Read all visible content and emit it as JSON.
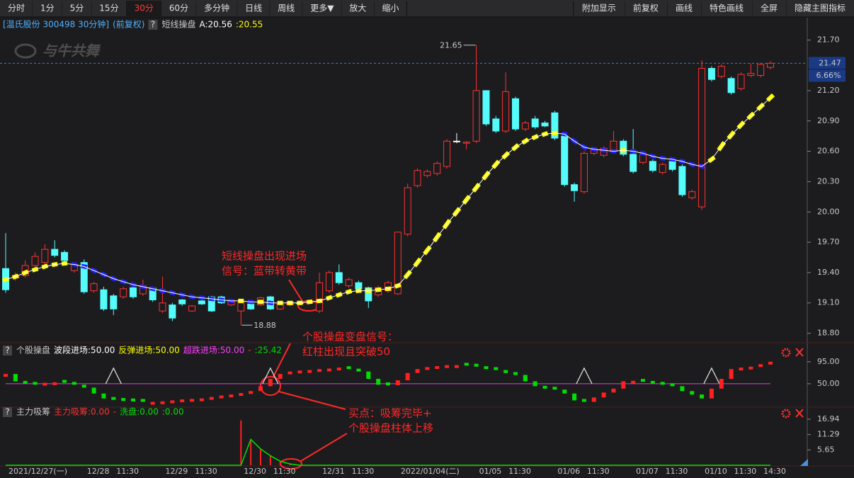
{
  "toolbar": {
    "left": [
      {
        "label": "分时"
      },
      {
        "label": "1分"
      },
      {
        "label": "5分"
      },
      {
        "label": "15分"
      },
      {
        "label": "30分",
        "active": true
      },
      {
        "label": "60分"
      },
      {
        "label": "多分钟"
      },
      {
        "label": "日线"
      },
      {
        "label": "周线"
      },
      {
        "label": "更多▼"
      },
      {
        "label": "放大"
      },
      {
        "label": "缩小"
      }
    ],
    "right": [
      {
        "label": "附加显示"
      },
      {
        "label": "前复权"
      },
      {
        "label": "画线"
      },
      {
        "label": "特色画线"
      },
      {
        "label": "全屏"
      },
      {
        "label": "隐藏主图指标"
      }
    ]
  },
  "help_label": "?",
  "logo": "与牛共舞",
  "annotations": [
    [
      "短线操盘出现进场",
      "信号：蓝带转黄带"
    ],
    [
      "个股操盘变盘信号：",
      "红柱出现且突破50"
    ],
    [
      "买点：吸筹完毕+",
      "个股操盘柱体上移"
    ]
  ],
  "chart_data": [
    {
      "type": "candlestick",
      "title": "[温氏股份 300498 30分钟]",
      "subtitle": "(前复权)",
      "legend": [
        {
          "label": "短线操盘",
          "color": "#c8c8c8"
        },
        {
          "label": "A:20.56",
          "color": "#ffffff"
        },
        {
          "label": ":20.55",
          "color": "#ffff00"
        }
      ],
      "categories": [
        "2021/12/27(一)",
        null,
        null,
        null,
        null,
        null,
        null,
        null,
        "12/28",
        null,
        null,
        "11:30",
        null,
        null,
        null,
        null,
        "12/29",
        null,
        null,
        "11:30",
        null,
        null,
        null,
        null,
        "12/30",
        null,
        null,
        "11:30",
        null,
        null,
        null,
        null,
        "12/31",
        null,
        null,
        "11:30",
        null,
        null,
        null,
        null,
        "2022/01/04(二)",
        null,
        null,
        null,
        null,
        null,
        null,
        null,
        "01/05",
        null,
        null,
        "11:30",
        null,
        null,
        null,
        null,
        "01/06",
        null,
        null,
        "11:30",
        null,
        null,
        null,
        null,
        "01/07",
        null,
        null,
        "11:30",
        null,
        null,
        null,
        "01/10",
        null,
        null,
        "11:30",
        null,
        null,
        "14:30",
        null
      ],
      "open": [
        19.44,
        19.35,
        19.37,
        19.47,
        19.5,
        19.63,
        19.6,
        19.42,
        19.5,
        19.22,
        19.23,
        19.17,
        19.16,
        19.25,
        19.19,
        19.25,
        19.02,
        19.08,
        19.13,
        19.02,
        19.12,
        19.16,
        19.16,
        19.08,
        19.02,
        19.09,
        19.08,
        19.16,
        19.04,
        19.08,
        19.1,
        19.1,
        19.02,
        19.22,
        19.4,
        19.27,
        19.3,
        19.25,
        19.18,
        19.22,
        19.19,
        19.78,
        20.26,
        20.36,
        20.38,
        20.45,
        20.7,
        20.68,
        20.7,
        21.2,
        20.92,
        20.8,
        21.12,
        20.82,
        20.92,
        20.88,
        20.98,
        20.75,
        20.27,
        20.2,
        20.58,
        20.56,
        20.6,
        20.7,
        20.57,
        20.49,
        20.5,
        20.39,
        20.5,
        20.45,
        20.14,
        20.05,
        21.42,
        21.34,
        21.32,
        21.22,
        21.35,
        21.35,
        21.43
      ],
      "close": [
        19.23,
        19.37,
        19.47,
        19.56,
        19.63,
        19.57,
        19.52,
        19.48,
        19.21,
        19.29,
        19.04,
        19.04,
        19.24,
        19.16,
        19.27,
        19.13,
        19.1,
        18.95,
        19.09,
        19.07,
        19.09,
        19.02,
        19.1,
        19.13,
        19.1,
        19.04,
        19.15,
        19.04,
        19.09,
        19.11,
        19.1,
        19.12,
        19.3,
        19.4,
        19.3,
        19.33,
        19.24,
        19.12,
        19.25,
        19.3,
        19.8,
        20.24,
        20.41,
        20.4,
        20.48,
        20.7,
        20.7,
        20.69,
        21.2,
        20.87,
        20.8,
        21.19,
        20.82,
        20.88,
        20.84,
        20.85,
        20.73,
        20.27,
        20.21,
        20.58,
        20.62,
        20.63,
        20.7,
        20.57,
        20.4,
        20.57,
        20.41,
        20.47,
        20.42,
        20.17,
        20.2,
        21.42,
        21.31,
        21.44,
        21.18,
        21.36,
        21.37,
        21.46,
        21.47
      ],
      "high": [
        19.79,
        19.4,
        19.52,
        19.6,
        19.68,
        19.72,
        19.62,
        19.5,
        19.53,
        19.31,
        19.26,
        19.19,
        19.26,
        19.27,
        19.33,
        19.26,
        19.36,
        19.1,
        19.14,
        19.08,
        19.13,
        19.17,
        19.17,
        19.14,
        19.14,
        19.1,
        19.16,
        19.17,
        19.1,
        19.12,
        19.12,
        19.13,
        19.4,
        19.42,
        19.48,
        19.35,
        19.32,
        19.26,
        19.27,
        19.32,
        19.8,
        20.28,
        20.43,
        20.42,
        20.5,
        20.72,
        20.78,
        20.7,
        21.65,
        21.2,
        20.95,
        21.38,
        21.14,
        20.9,
        20.95,
        20.9,
        21.0,
        20.77,
        20.29,
        20.6,
        20.64,
        20.65,
        20.8,
        20.72,
        20.82,
        20.59,
        20.52,
        20.49,
        20.52,
        20.47,
        20.22,
        21.5,
        21.44,
        21.46,
        21.34,
        21.38,
        21.47,
        21.47,
        21.49
      ],
      "low": [
        19.2,
        19.32,
        19.35,
        19.45,
        19.48,
        19.55,
        19.5,
        19.4,
        19.19,
        19.2,
        19.02,
        18.98,
        19.14,
        19.14,
        19.17,
        19.11,
        19.0,
        18.92,
        19.07,
        19.01,
        19.08,
        19.01,
        19.09,
        19.07,
        18.88,
        19.03,
        19.07,
        19.03,
        19.03,
        19.07,
        19.08,
        19.09,
        19.0,
        19.2,
        19.28,
        19.25,
        19.22,
        19.05,
        19.16,
        19.2,
        19.18,
        19.76,
        20.24,
        20.34,
        20.36,
        20.43,
        20.68,
        20.62,
        20.68,
        20.85,
        20.78,
        20.78,
        20.8,
        20.8,
        20.82,
        20.84,
        20.71,
        20.25,
        20.1,
        20.18,
        20.56,
        20.54,
        20.58,
        20.55,
        20.38,
        20.47,
        20.39,
        20.37,
        20.4,
        20.15,
        20.12,
        20.02,
        21.29,
        21.32,
        21.16,
        21.2,
        21.33,
        21.33,
        21.41
      ],
      "up_color": "#ff3232",
      "down_color": "#54fcfc",
      "flat_color": "#ffffff",
      "band": {
        "values": [
          19.33,
          19.36,
          19.4,
          19.43,
          19.46,
          19.48,
          19.49,
          19.48,
          19.46,
          19.42,
          19.38,
          19.34,
          19.31,
          19.28,
          19.26,
          19.24,
          19.22,
          19.2,
          19.18,
          19.16,
          19.15,
          19.14,
          19.13,
          19.12,
          19.12,
          19.11,
          19.11,
          19.1,
          19.1,
          19.1,
          19.1,
          19.11,
          19.12,
          19.15,
          19.18,
          19.21,
          19.22,
          19.22,
          19.23,
          19.24,
          19.27,
          19.38,
          19.5,
          19.62,
          19.75,
          19.88,
          20.0,
          20.12,
          20.24,
          20.36,
          20.47,
          20.56,
          20.64,
          20.7,
          20.74,
          20.77,
          20.78,
          20.77,
          20.7,
          20.64,
          20.62,
          20.61,
          20.6,
          20.61,
          20.6,
          20.58,
          20.55,
          20.53,
          20.52,
          20.5,
          20.47,
          20.45,
          20.52,
          20.65,
          20.76,
          20.86,
          20.95,
          21.04,
          21.13
        ],
        "up_color": "#ffff00",
        "down_color": "#2020ff",
        "line_color": "#ffffff"
      },
      "ylim": [
        18.72,
        21.9
      ],
      "yticks": [
        {
          "value": 21.7,
          "label": "21.70"
        },
        {
          "value": 21.2,
          "label": "21.20"
        },
        {
          "value": 20.9,
          "label": "20.90"
        },
        {
          "value": 20.6,
          "label": "20.60"
        },
        {
          "value": 20.3,
          "label": "20.30"
        },
        {
          "value": 20.0,
          "label": "20.00"
        },
        {
          "value": 19.7,
          "label": "19.70"
        },
        {
          "value": 19.4,
          "label": "19.40"
        },
        {
          "value": 19.1,
          "label": "19.10"
        },
        {
          "value": 18.8,
          "label": "18.80"
        }
      ],
      "last_price": {
        "value": 21.47,
        "label": "21.47"
      },
      "change_label": "6.66%",
      "max_label": {
        "value": 21.65,
        "label": "21.65"
      },
      "min_label": {
        "value": 18.88,
        "label": "18.88"
      }
    },
    {
      "type": "indicator-bar",
      "title": "个股操盘",
      "legend": [
        {
          "label": "波段进场:50.00",
          "color": "#ffffff"
        },
        {
          "label": "反弹进场:50.00",
          "color": "#ffff00"
        },
        {
          "label": "超跌进场:50.00",
          "color": "#ff40ff"
        },
        {
          "label": "-",
          "color": "#ff3030"
        },
        {
          "label": ":25.42",
          "color": "#00e000"
        }
      ],
      "values": [
        70,
        55,
        50,
        48,
        52,
        53,
        52,
        48,
        42,
        30,
        20,
        17,
        15,
        14,
        13,
        13,
        14,
        16,
        18,
        19,
        20,
        23,
        26,
        28,
        31,
        35,
        45,
        60,
        70,
        75,
        77,
        78,
        80,
        81,
        83,
        80,
        75,
        60,
        48,
        47,
        57,
        72,
        80,
        84,
        86,
        88,
        88,
        87,
        85,
        80,
        78,
        72,
        68,
        55,
        45,
        40,
        38,
        30,
        16,
        13,
        22,
        32,
        40,
        55,
        56,
        54,
        50,
        48,
        45,
        35,
        28,
        20,
        40,
        60,
        80,
        83,
        85,
        90,
        95
      ],
      "up_color": "#ff2020",
      "down_color": "#00e000",
      "reference": 50,
      "reference_color": "#e040e0",
      "signals": [
        null,
        null,
        null,
        null,
        null,
        null,
        null,
        null,
        null,
        null,
        null,
        82,
        null,
        null,
        null,
        null,
        null,
        null,
        null,
        null,
        null,
        null,
        null,
        null,
        null,
        null,
        null,
        82,
        null,
        null,
        null,
        null,
        null,
        null,
        null,
        null,
        null,
        null,
        null,
        null,
        null,
        null,
        null,
        null,
        null,
        null,
        null,
        null,
        null,
        null,
        null,
        null,
        null,
        null,
        null,
        null,
        null,
        null,
        null,
        82,
        null,
        null,
        null,
        null,
        null,
        null,
        null,
        null,
        null,
        null,
        null,
        null,
        82,
        null,
        null,
        null,
        null,
        null,
        null
      ],
      "signal_color": "#e8e8e8",
      "ylim": [
        5,
        115
      ],
      "yticks": [
        {
          "value": 95,
          "label": "95.00"
        },
        {
          "value": 50,
          "label": "50.00"
        }
      ]
    },
    {
      "type": "bar-line",
      "title": "主力吸筹",
      "legend": [
        {
          "label": "主力吸筹:0.00",
          "color": "#ff3030"
        },
        {
          "label": "-",
          "color": "#ff3030"
        },
        {
          "label": "洗盘:0.00",
          "color": "#00e000"
        },
        {
          "label": ":0.00",
          "color": "#00e000"
        }
      ],
      "series": [
        {
          "style": "bar",
          "color": "#ff2020",
          "values": [
            0,
            0,
            0,
            0,
            0,
            0,
            0,
            0,
            0,
            0,
            0,
            0,
            0,
            0,
            0,
            0,
            0,
            0,
            0,
            0,
            0,
            0,
            0,
            0,
            16.5,
            9.5,
            6,
            3.5,
            1.5,
            0.5,
            0,
            0,
            0,
            0,
            0,
            0,
            0,
            0,
            0,
            0,
            0,
            0,
            0,
            0,
            0,
            0,
            0,
            0,
            0,
            0,
            0,
            0,
            0,
            0,
            0,
            0,
            0,
            0,
            0,
            0,
            0,
            0,
            0,
            0,
            0,
            0,
            0,
            0,
            0,
            0,
            0,
            0,
            0,
            0,
            0,
            0,
            0,
            0,
            0
          ]
        },
        {
          "style": "line",
          "color": "#00e000",
          "values": [
            0,
            0,
            0,
            0,
            0,
            0,
            0,
            0,
            0,
            0,
            0,
            0,
            0,
            0,
            0,
            0,
            0,
            0,
            0,
            0,
            0,
            0,
            0,
            0,
            0,
            9.5,
            6,
            3.5,
            1.5,
            0.5,
            0,
            0,
            0,
            0,
            0,
            0,
            0,
            0,
            0,
            0,
            0,
            0,
            0,
            0,
            0,
            0,
            0,
            0,
            0,
            0,
            0,
            0,
            0,
            0,
            0,
            0,
            0,
            0,
            0,
            0,
            0,
            0,
            0,
            0,
            0,
            0,
            0,
            0,
            0,
            0,
            0,
            0,
            0,
            0,
            0,
            0,
            0,
            0,
            0
          ]
        }
      ],
      "ylim": [
        0,
        18.75
      ],
      "yticks": [
        {
          "value": 16.94,
          "label": "16.94"
        },
        {
          "value": 11.29,
          "label": "11.29"
        },
        {
          "value": 5.65,
          "label": "5.65"
        }
      ]
    }
  ]
}
